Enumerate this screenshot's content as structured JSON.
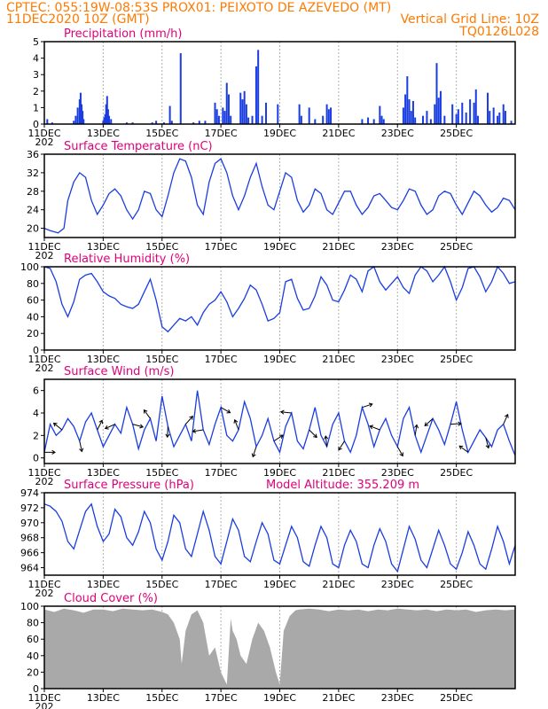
{
  "header": {
    "line1": "CPTEC:   055:19W-08:53S   PROX01: PEIXOTO DE AZEVEDO (MT)",
    "line2_left": "11DEC2020 10Z (GMT)",
    "line2_right": "Vertical Grid Line: 10Z",
    "line3_right": "TQ0126L028"
  },
  "colors": {
    "header": "#ff7a00",
    "title": "#e0007a",
    "series": "#1a3de0",
    "cloud": "#a9a9a9",
    "grid": "#b0b0b0"
  },
  "x_ticks": [
    "11DEC",
    "13DEC",
    "15DEC",
    "17DEC",
    "19DEC",
    "21DEC",
    "23DEC",
    "25DEC"
  ],
  "year_fragment": "202",
  "chart_data": [
    {
      "id": "precip",
      "type": "bar",
      "title": "Precipitation (mm/h)",
      "ylim": [
        0,
        5
      ],
      "yticks": [
        0,
        1,
        2,
        3,
        4,
        5
      ],
      "events": [
        [
          0.15,
          0.3
        ],
        [
          0.4,
          0.1
        ],
        [
          1.5,
          0.2
        ],
        [
          1.6,
          0.5
        ],
        [
          1.7,
          1.0
        ],
        [
          1.8,
          1.5
        ],
        [
          1.85,
          1.9
        ],
        [
          1.9,
          1.2
        ],
        [
          1.95,
          0.8
        ],
        [
          2.0,
          0.3
        ],
        [
          3.0,
          0.2
        ],
        [
          3.05,
          0.4
        ],
        [
          3.1,
          0.6
        ],
        [
          3.15,
          1.2
        ],
        [
          3.2,
          1.7
        ],
        [
          3.25,
          0.9
        ],
        [
          3.3,
          0.5
        ],
        [
          3.4,
          0.3
        ],
        [
          4.2,
          0.1
        ],
        [
          4.5,
          0.1
        ],
        [
          5.5,
          0.1
        ],
        [
          5.7,
          0.2
        ],
        [
          6.1,
          0.1
        ],
        [
          6.4,
          1.1
        ],
        [
          6.5,
          0.2
        ],
        [
          6.95,
          4.3
        ],
        [
          7.6,
          0.1
        ],
        [
          7.9,
          0.2
        ],
        [
          8.2,
          0.2
        ],
        [
          8.7,
          1.3
        ],
        [
          8.8,
          0.9
        ],
        [
          8.9,
          0.5
        ],
        [
          9.1,
          1.0
        ],
        [
          9.2,
          0.8
        ],
        [
          9.3,
          2.5
        ],
        [
          9.4,
          1.8
        ],
        [
          9.5,
          0.5
        ],
        [
          10.0,
          1.9
        ],
        [
          10.1,
          1.5
        ],
        [
          10.2,
          2.0
        ],
        [
          10.3,
          1.2
        ],
        [
          10.4,
          0.4
        ],
        [
          10.6,
          0.5
        ],
        [
          10.8,
          3.5
        ],
        [
          10.9,
          4.5
        ],
        [
          11.1,
          0.5
        ],
        [
          11.3,
          1.3
        ],
        [
          11.9,
          1.2
        ],
        [
          13.0,
          1.2
        ],
        [
          13.1,
          0.5
        ],
        [
          13.5,
          1.0
        ],
        [
          13.8,
          0.3
        ],
        [
          14.2,
          0.5
        ],
        [
          14.4,
          1.2
        ],
        [
          14.5,
          0.9
        ],
        [
          14.6,
          1.0
        ],
        [
          16.2,
          0.3
        ],
        [
          16.5,
          0.4
        ],
        [
          16.8,
          0.3
        ],
        [
          17.1,
          1.1
        ],
        [
          17.2,
          0.5
        ],
        [
          17.3,
          0.3
        ],
        [
          18.3,
          1.0
        ],
        [
          18.4,
          1.8
        ],
        [
          18.5,
          2.9
        ],
        [
          18.6,
          1.5
        ],
        [
          18.7,
          0.8
        ],
        [
          18.8,
          1.4
        ],
        [
          18.9,
          0.4
        ],
        [
          19.3,
          0.5
        ],
        [
          19.5,
          0.8
        ],
        [
          19.7,
          0.3
        ],
        [
          19.9,
          1.2
        ],
        [
          20.0,
          3.7
        ],
        [
          20.1,
          1.6
        ],
        [
          20.2,
          2.0
        ],
        [
          20.4,
          0.5
        ],
        [
          20.8,
          1.2
        ],
        [
          21.0,
          0.6
        ],
        [
          21.1,
          0.9
        ],
        [
          21.3,
          1.3
        ],
        [
          21.5,
          0.7
        ],
        [
          21.7,
          1.5
        ],
        [
          21.9,
          1.3
        ],
        [
          22.0,
          2.1
        ],
        [
          22.1,
          0.5
        ],
        [
          22.6,
          1.9
        ],
        [
          22.7,
          0.8
        ],
        [
          22.9,
          1.0
        ],
        [
          23.1,
          0.5
        ],
        [
          23.2,
          0.7
        ],
        [
          23.4,
          1.2
        ],
        [
          23.5,
          0.8
        ],
        [
          23.8,
          0.2
        ]
      ]
    },
    {
      "id": "temp",
      "type": "line",
      "title": "Surface Temperature (nC)",
      "ylim": [
        18,
        36
      ],
      "yticks": [
        20,
        24,
        28,
        32,
        36
      ],
      "x": [
        0,
        0.3,
        0.7,
        1.0,
        1.2,
        1.5,
        1.8,
        2.1,
        2.4,
        2.7,
        3.0,
        3.3,
        3.6,
        3.9,
        4.2,
        4.5,
        4.8,
        5.1,
        5.4,
        5.7,
        6.0,
        6.3,
        6.6,
        6.9,
        7.2,
        7.5,
        7.8,
        8.1,
        8.4,
        8.7,
        9.0,
        9.3,
        9.6,
        9.9,
        10.2,
        10.5,
        10.8,
        11.1,
        11.4,
        11.7,
        12.0,
        12.3,
        12.6,
        12.9,
        13.2,
        13.5,
        13.8,
        14.1,
        14.4,
        14.7,
        15.0,
        15.3,
        15.6,
        15.9,
        16.2,
        16.5,
        16.8,
        17.1,
        17.4,
        17.7,
        18.0,
        18.3,
        18.6,
        18.9,
        19.2,
        19.5,
        19.8,
        20.1,
        20.4,
        20.7,
        21.0,
        21.3,
        21.6,
        21.9,
        22.2,
        22.5,
        22.8,
        23.1,
        23.4,
        23.7,
        24.0
      ],
      "values": [
        20,
        19.5,
        19,
        20,
        26,
        30,
        32,
        31,
        26,
        23,
        25,
        27.5,
        28.5,
        27,
        24,
        22,
        24,
        28,
        27.5,
        24,
        22.5,
        27,
        32,
        35,
        34.5,
        31,
        25,
        23,
        30,
        34,
        35,
        32,
        27,
        24,
        27,
        31,
        34,
        29,
        25,
        24,
        28,
        32,
        31,
        26,
        23.5,
        25,
        28.5,
        27.5,
        24,
        23,
        25.5,
        28,
        28,
        25,
        23,
        24.5,
        27,
        27.5,
        26,
        24.5,
        24,
        26,
        28.5,
        28,
        25,
        23,
        24,
        27,
        28,
        27.5,
        25,
        23,
        25.5,
        28,
        27,
        25,
        23.5,
        24.5,
        26.5,
        26,
        24
      ]
    },
    {
      "id": "rh",
      "type": "line",
      "title": "Relative Humidity (%)",
      "ylim": [
        0,
        100
      ],
      "yticks": [
        0,
        20,
        40,
        60,
        80,
        100
      ],
      "x": [
        0,
        0.3,
        0.6,
        0.9,
        1.2,
        1.5,
        1.8,
        2.1,
        2.4,
        2.7,
        3.0,
        3.3,
        3.6,
        3.9,
        4.2,
        4.5,
        4.8,
        5.1,
        5.4,
        5.7,
        6.0,
        6.3,
        6.6,
        6.9,
        7.2,
        7.5,
        7.8,
        8.1,
        8.4,
        8.7,
        9.0,
        9.3,
        9.6,
        9.9,
        10.2,
        10.5,
        10.8,
        11.1,
        11.4,
        11.7,
        12.0,
        12.3,
        12.6,
        12.9,
        13.2,
        13.5,
        13.8,
        14.1,
        14.4,
        14.7,
        15.0,
        15.3,
        15.6,
        15.9,
        16.2,
        16.5,
        16.8,
        17.1,
        17.4,
        17.7,
        18.0,
        18.3,
        18.6,
        18.9,
        19.2,
        19.5,
        19.8,
        20.1,
        20.4,
        20.7,
        21.0,
        21.3,
        21.6,
        21.9,
        22.2,
        22.5,
        22.8,
        23.1,
        23.4,
        23.7,
        24.0
      ],
      "values": [
        100,
        98,
        82,
        55,
        40,
        58,
        85,
        90,
        92,
        82,
        70,
        65,
        62,
        55,
        52,
        50,
        55,
        70,
        85,
        60,
        28,
        22,
        30,
        38,
        35,
        40,
        30,
        45,
        55,
        60,
        70,
        58,
        40,
        50,
        62,
        78,
        72,
        55,
        35,
        38,
        45,
        82,
        85,
        62,
        48,
        50,
        65,
        88,
        78,
        60,
        58,
        72,
        90,
        85,
        70,
        95,
        100,
        82,
        72,
        80,
        88,
        75,
        68,
        90,
        100,
        95,
        82,
        90,
        100,
        82,
        60,
        75,
        98,
        100,
        88,
        70,
        82,
        100,
        92,
        80,
        82
      ]
    },
    {
      "id": "wind",
      "type": "line",
      "title": "Surface Wind (m/s)",
      "ylim": [
        -0.5,
        7
      ],
      "yticks": [
        0,
        2,
        4,
        6
      ],
      "x": [
        0,
        0.3,
        0.6,
        0.9,
        1.2,
        1.5,
        1.8,
        2.1,
        2.4,
        2.7,
        3.0,
        3.3,
        3.6,
        3.9,
        4.2,
        4.5,
        4.8,
        5.1,
        5.4,
        5.7,
        6.0,
        6.3,
        6.6,
        6.9,
        7.2,
        7.5,
        7.8,
        8.1,
        8.4,
        8.7,
        9.0,
        9.3,
        9.6,
        9.9,
        10.2,
        10.5,
        10.8,
        11.1,
        11.4,
        11.7,
        12.0,
        12.3,
        12.6,
        12.9,
        13.2,
        13.5,
        13.8,
        14.1,
        14.4,
        14.7,
        15.0,
        15.3,
        15.6,
        15.9,
        16.2,
        16.5,
        16.8,
        17.1,
        17.4,
        17.7,
        18.0,
        18.3,
        18.6,
        18.9,
        19.2,
        19.5,
        19.8,
        20.1,
        20.4,
        20.7,
        21.0,
        21.3,
        21.6,
        21.9,
        22.2,
        22.5,
        22.8,
        23.1,
        23.4,
        23.7,
        24.0
      ],
      "values": [
        0.5,
        3.0,
        2.0,
        2.5,
        3.5,
        2.8,
        1.5,
        3.2,
        4.0,
        2.5,
        1.0,
        2.0,
        3.0,
        2.2,
        4.5,
        3.0,
        0.8,
        2.5,
        3.5,
        1.5,
        5.5,
        2.8,
        1.0,
        2.0,
        3.0,
        1.5,
        6.0,
        2.5,
        1.2,
        3.0,
        4.5,
        2.0,
        1.5,
        2.5,
        5.0,
        3.5,
        1.0,
        2.0,
        3.5,
        1.5,
        0.5,
        2.8,
        4.0,
        1.5,
        0.8,
        2.5,
        4.5,
        2.0,
        1.0,
        3.0,
        4.0,
        1.5,
        0.5,
        2.0,
        4.5,
        3.0,
        1.0,
        2.5,
        3.5,
        2.0,
        1.0,
        3.5,
        4.5,
        2.0,
        0.5,
        2.0,
        3.5,
        2.5,
        1.2,
        3.0,
        5.0,
        2.5,
        0.5,
        1.5,
        2.5,
        1.8,
        1.0,
        2.5,
        3.0,
        1.5,
        0.2
      ]
    },
    {
      "id": "pressure",
      "type": "line",
      "title": "Surface Pressure (hPa)",
      "annotation": "Model Altitude: 355.209  m",
      "ylim": [
        963,
        974
      ],
      "yticks": [
        964,
        966,
        968,
        970,
        972,
        974
      ],
      "x": [
        0,
        0.3,
        0.6,
        0.9,
        1.2,
        1.5,
        1.8,
        2.1,
        2.4,
        2.7,
        3.0,
        3.3,
        3.6,
        3.9,
        4.2,
        4.5,
        4.8,
        5.1,
        5.4,
        5.7,
        6.0,
        6.3,
        6.6,
        6.9,
        7.2,
        7.5,
        7.8,
        8.1,
        8.4,
        8.7,
        9.0,
        9.3,
        9.6,
        9.9,
        10.2,
        10.5,
        10.8,
        11.1,
        11.4,
        11.7,
        12.0,
        12.3,
        12.6,
        12.9,
        13.2,
        13.5,
        13.8,
        14.1,
        14.4,
        14.7,
        15.0,
        15.3,
        15.6,
        15.9,
        16.2,
        16.5,
        16.8,
        17.1,
        17.4,
        17.7,
        18.0,
        18.3,
        18.6,
        18.9,
        19.2,
        19.5,
        19.8,
        20.1,
        20.4,
        20.7,
        21.0,
        21.3,
        21.6,
        21.9,
        22.2,
        22.5,
        22.8,
        23.1,
        23.4,
        23.7,
        24.0
      ],
      "values": [
        972.5,
        972.2,
        971.5,
        970.2,
        967.5,
        966.5,
        969,
        971.5,
        972.5,
        969.5,
        967.5,
        968.5,
        971.8,
        970.8,
        968,
        967,
        968.8,
        971.5,
        970,
        966.5,
        965,
        967.5,
        971,
        970,
        966.5,
        965.5,
        968.5,
        971.5,
        969,
        965.5,
        964.5,
        967.5,
        970.5,
        969,
        965.5,
        964.8,
        967.5,
        970,
        968.5,
        965,
        964.5,
        967,
        969.5,
        968,
        964.8,
        964.2,
        967,
        969.5,
        968,
        964.5,
        964,
        967,
        969,
        967.5,
        964.5,
        964,
        967,
        969.2,
        967.5,
        964.5,
        963.5,
        966.5,
        969.5,
        967.8,
        965,
        964,
        966.5,
        969,
        967,
        964.5,
        963.8,
        966,
        968.8,
        967,
        964.5,
        963.8,
        966.5,
        969.5,
        967.5,
        964.5,
        967
      ]
    },
    {
      "id": "cloud",
      "type": "area",
      "title": "Cloud Cover (%)",
      "ylim": [
        0,
        100
      ],
      "yticks": [
        0,
        20,
        40,
        60,
        80,
        100
      ],
      "x": [
        0,
        0.5,
        1.0,
        1.5,
        2.0,
        2.5,
        3.0,
        3.5,
        4.0,
        4.5,
        5.0,
        5.5,
        6.0,
        6.3,
        6.6,
        6.9,
        7.0,
        7.2,
        7.5,
        7.8,
        8.1,
        8.4,
        8.7,
        9.0,
        9.3,
        9.5,
        9.6,
        9.8,
        10.0,
        10.3,
        10.6,
        10.9,
        11.2,
        11.5,
        11.8,
        12.0,
        12.2,
        12.5,
        12.8,
        13.0,
        13.5,
        14.0,
        14.5,
        15.0,
        15.5,
        16.0,
        16.5,
        17.0,
        17.5,
        18.0,
        18.5,
        19.0,
        19.5,
        20.0,
        20.5,
        21.0,
        21.5,
        22.0,
        22.5,
        23.0,
        23.5,
        24.0
      ],
      "values": [
        96,
        93,
        97,
        95,
        92,
        96,
        96,
        94,
        97,
        96,
        95,
        96,
        93,
        90,
        80,
        60,
        30,
        70,
        90,
        95,
        80,
        40,
        50,
        20,
        5,
        85,
        70,
        60,
        40,
        30,
        60,
        80,
        70,
        50,
        20,
        5,
        70,
        88,
        95,
        96,
        97,
        96,
        94,
        96,
        95,
        96,
        94,
        96,
        95,
        97,
        96,
        95,
        96,
        94,
        96,
        95,
        96,
        93,
        95,
        96,
        95,
        96
      ]
    }
  ]
}
